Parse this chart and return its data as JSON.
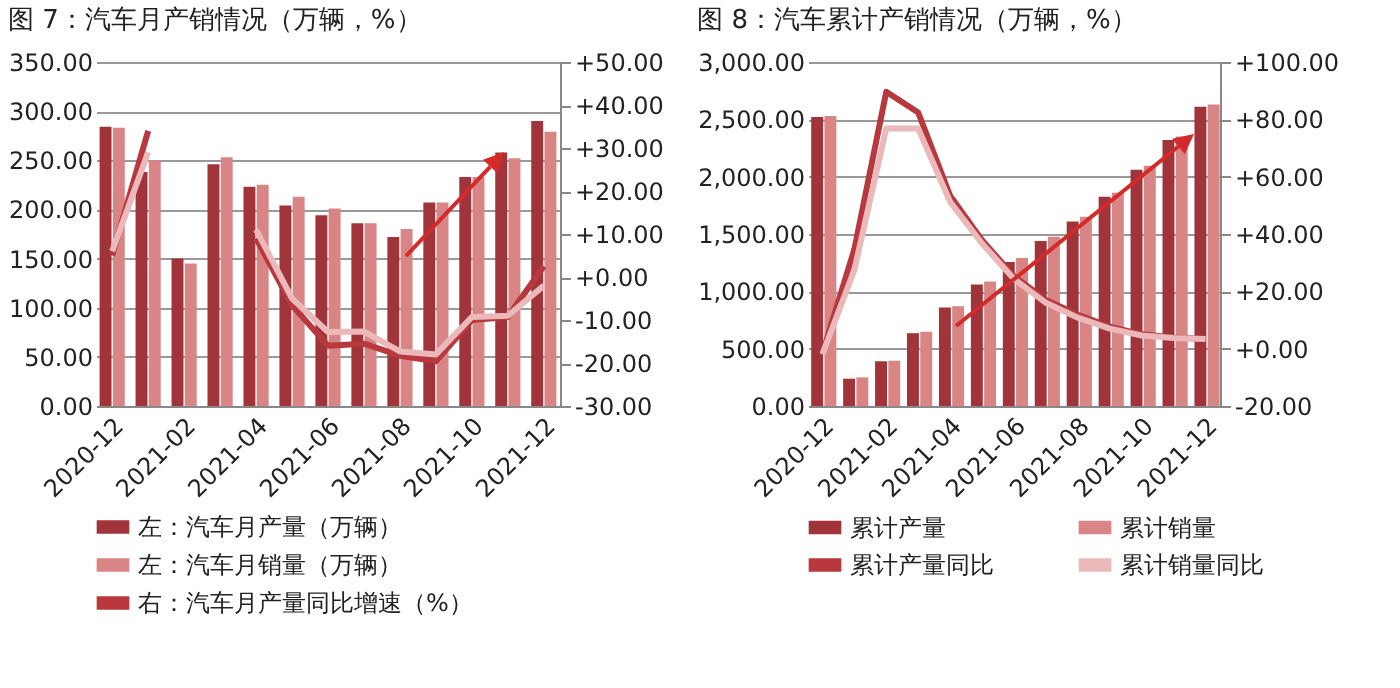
{
  "chart_data": [
    {
      "type": "bar",
      "title": "图 7：汽车月产销情况（万辆，%）",
      "categories": [
        "2020-12",
        null,
        "2021-02",
        null,
        "2021-04",
        null,
        "2021-06",
        null,
        "2021-08",
        null,
        "2021-10",
        null,
        "2021-12"
      ],
      "series": [
        {
          "name": "左：汽车月产量（万辆）",
          "color": "#a0343a",
          "values": [
            284,
            238,
            150,
            246,
            223,
            204,
            194,
            186,
            172,
            207,
            233,
            258,
            290
          ]
        },
        {
          "name": "左：汽车月销量（万辆）",
          "color": "#d98585",
          "values": [
            283,
            250,
            145,
            253,
            225,
            213,
            201,
            186,
            180,
            207,
            233,
            252,
            279
          ]
        },
        {
          "name": "右：汽车月产量同比增速（%）",
          "type": "line",
          "axis": "y2",
          "color": "#b8383e",
          "values": [
            5,
            34,
            null,
            null,
            9,
            -6.6,
            -16,
            -15.5,
            -18.3,
            -19.6,
            -10,
            -9.3,
            2.5
          ]
        },
        {
          "type": "line",
          "axis": "y2",
          "color": "#ebb9b9",
          "values": [
            6,
            29,
            null,
            null,
            11,
            -5,
            -12.8,
            -12.7,
            -17.3,
            -18,
            -9.3,
            -9,
            -2
          ]
        }
      ],
      "ylim": [
        0,
        350
      ],
      "yticks": [
        {
          "value": 0,
          "label": "0.00"
        },
        {
          "value": 50,
          "label": "50.00"
        },
        {
          "value": 100,
          "label": "100.00"
        },
        {
          "value": 150,
          "label": "150.00"
        },
        {
          "value": 200,
          "label": "200.00"
        },
        {
          "value": 250,
          "label": "250.00"
        },
        {
          "value": 300,
          "label": "300.00"
        },
        {
          "value": 350,
          "label": "350.00"
        }
      ],
      "y2lim": [
        -30,
        50
      ],
      "y2ticks": [
        {
          "value": -30,
          "label": "-30.00"
        },
        {
          "value": -20,
          "label": "-20.00"
        },
        {
          "value": -10,
          "label": "-10.00"
        },
        {
          "value": 0,
          "label": "+0.00"
        },
        {
          "value": 10,
          "label": "+10.00"
        },
        {
          "value": 20,
          "label": "+20.00"
        },
        {
          "value": 30,
          "label": "+30.00"
        },
        {
          "value": 40,
          "label": "+40.00"
        },
        {
          "value": 50,
          "label": "+50.00"
        }
      ],
      "grid": "y",
      "legend": "bottom"
    },
    {
      "type": "bar",
      "title": "图 8：汽车累计产销情况（万辆，%）",
      "categories": [
        "2020-12",
        null,
        "2021-02",
        null,
        "2021-04",
        null,
        "2021-06",
        null,
        "2021-08",
        null,
        "2021-10",
        null,
        "2021-12"
      ],
      "series": [
        {
          "name": "累计产量",
          "color": "#a0343a",
          "values": [
            2520,
            238,
            390,
            635,
            860,
            1060,
            1255,
            1440,
            1610,
            1825,
            2060,
            2320,
            2610
          ]
        },
        {
          "name": "累计销量",
          "color": "#d98585",
          "values": [
            2530,
            250,
            395,
            648,
            870,
            1085,
            1290,
            1475,
            1650,
            1860,
            2095,
            2350,
            2630
          ]
        },
        {
          "name": "累计产量同比",
          "type": "line",
          "axis": "y2",
          "color": "#b8383e",
          "values": [
            -1.7,
            34.6,
            89.6,
            82.4,
            53.3,
            37.8,
            25.3,
            17,
            11.8,
            7.7,
            5,
            3.9,
            3.4
          ]
        },
        {
          "name": "累计销量同比",
          "type": "line",
          "axis": "y2",
          "color": "#ebb9b9",
          "values": [
            -2,
            27.4,
            76.8,
            76.8,
            51.2,
            36.7,
            24.3,
            16,
            10.8,
            7,
            4.6,
            3.7,
            3.4
          ]
        }
      ],
      "ylim": [
        0,
        3000
      ],
      "yticks": [
        {
          "value": 0,
          "label": "0.00"
        },
        {
          "value": 500,
          "label": "500.00"
        },
        {
          "value": 1000,
          "label": "1,000.00"
        },
        {
          "value": 1500,
          "label": "1,500.00"
        },
        {
          "value": 2000,
          "label": "2,000.00"
        },
        {
          "value": 2500,
          "label": "2,500.00"
        },
        {
          "value": 3000,
          "label": "3,000.00"
        }
      ],
      "y2lim": [
        -20,
        100
      ],
      "y2ticks": [
        {
          "value": -20,
          "label": "-20.00"
        },
        {
          "value": 0,
          "label": "+0.00"
        },
        {
          "value": 20,
          "label": "+20.00"
        },
        {
          "value": 40,
          "label": "+40.00"
        },
        {
          "value": 60,
          "label": "+60.00"
        },
        {
          "value": 80,
          "label": "+80.00"
        },
        {
          "value": 100,
          "label": "+100.00"
        }
      ],
      "grid": "y",
      "legend": "bottom"
    }
  ]
}
